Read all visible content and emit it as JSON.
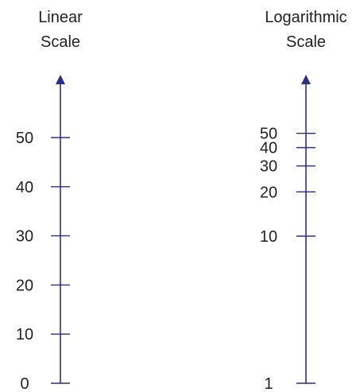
{
  "colors": {
    "axis": "#2d2d8a",
    "text": "#222222",
    "background": "#ffffff"
  },
  "linear": {
    "title_line1": "Linear",
    "title_line2": "Scale",
    "ticks": [
      {
        "value": 0,
        "label": "0"
      },
      {
        "value": 10,
        "label": "10"
      },
      {
        "value": 20,
        "label": "20"
      },
      {
        "value": 30,
        "label": "30"
      },
      {
        "value": 40,
        "label": "40"
      },
      {
        "value": 50,
        "label": "50"
      }
    ]
  },
  "logarithmic": {
    "title_line1": "Logarithmic",
    "title_line2": "Scale",
    "ticks": [
      {
        "value": 1,
        "label": "1"
      },
      {
        "value": 10,
        "label": "10"
      },
      {
        "value": 20,
        "label": "20"
      },
      {
        "value": 30,
        "label": "30"
      },
      {
        "value": 40,
        "label": "40"
      },
      {
        "value": 50,
        "label": "50"
      }
    ]
  }
}
